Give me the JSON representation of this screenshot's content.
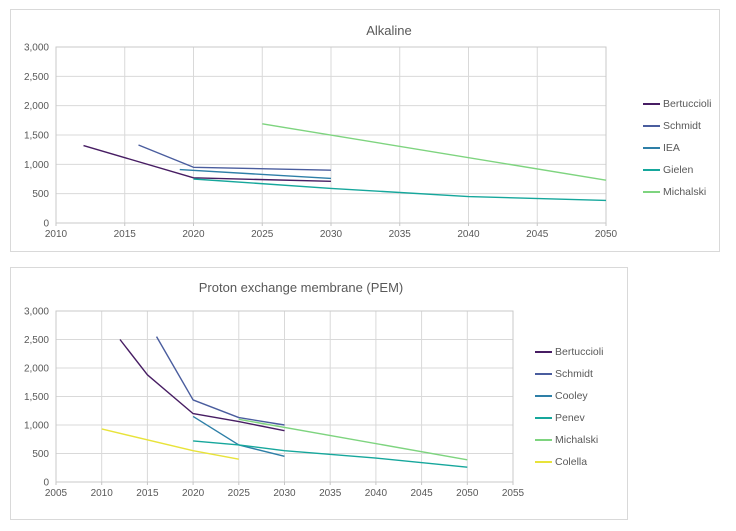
{
  "page": {
    "background": "#ffffff"
  },
  "colors": {
    "grid": "#d9d9d9",
    "plot_border": "#c9c9c9",
    "tick_mark": "#c6c6c6",
    "axis_text": "#595959",
    "title_text": "#595959"
  },
  "chart_data": [
    {
      "type": "line",
      "title": "Alkaline",
      "xlim": [
        2010,
        2050
      ],
      "ylim": [
        0,
        3000
      ],
      "grid": true,
      "legend_position": "right",
      "x_ticks": [
        2010,
        2015,
        2020,
        2025,
        2030,
        2035,
        2040,
        2045,
        2050
      ],
      "x_tick_labels": [
        "2010",
        "2015",
        "2020",
        "2025",
        "2030",
        "2035",
        "2040",
        "2045",
        "2050"
      ],
      "y_ticks": [
        0,
        500,
        1000,
        1500,
        2000,
        2500,
        3000
      ],
      "y_tick_labels": [
        "0",
        "500",
        "1,000",
        "1,500",
        "2,000",
        "2,500",
        "3,000"
      ],
      "series": [
        {
          "name": "Bertuccioli",
          "color": "#471d63",
          "points": [
            [
              2012,
              1320
            ],
            [
              2020,
              770
            ],
            [
              2030,
              710
            ]
          ]
        },
        {
          "name": "Schmidt",
          "color": "#4a5d9e",
          "points": [
            [
              2016,
              1330
            ],
            [
              2020,
              950
            ],
            [
              2030,
              900
            ]
          ]
        },
        {
          "name": "IEA",
          "color": "#2e7fa7",
          "points": [
            [
              2019,
              910
            ],
            [
              2030,
              760
            ]
          ]
        },
        {
          "name": "Gielen",
          "color": "#16a79c",
          "points": [
            [
              2020,
              750
            ],
            [
              2030,
              590
            ],
            [
              2040,
              450
            ],
            [
              2050,
              385
            ]
          ]
        },
        {
          "name": "Michalski",
          "color": "#7ed47f",
          "points": [
            [
              2025,
              1690
            ],
            [
              2050,
              730
            ]
          ]
        }
      ]
    },
    {
      "type": "line",
      "title": "Proton exchange membrane (PEM)",
      "xlim": [
        2005,
        2055
      ],
      "ylim": [
        0,
        3000
      ],
      "grid": true,
      "legend_position": "right",
      "x_ticks": [
        2005,
        2010,
        2015,
        2020,
        2025,
        2030,
        2035,
        2040,
        2045,
        2050,
        2055
      ],
      "x_tick_labels": [
        "2005",
        "2010",
        "2015",
        "2020",
        "2025",
        "2030",
        "2035",
        "2040",
        "2045",
        "2050",
        "2055"
      ],
      "y_ticks": [
        0,
        500,
        1000,
        1500,
        2000,
        2500,
        3000
      ],
      "y_tick_labels": [
        "0",
        "500",
        "1,000",
        "1,500",
        "2,000",
        "2,500",
        "3,000"
      ],
      "series": [
        {
          "name": "Bertuccioli",
          "color": "#471d63",
          "points": [
            [
              2012,
              2500
            ],
            [
              2015,
              1880
            ],
            [
              2020,
              1200
            ],
            [
              2025,
              1060
            ],
            [
              2030,
              900
            ]
          ]
        },
        {
          "name": "Schmidt",
          "color": "#4a5d9e",
          "points": [
            [
              2016,
              2550
            ],
            [
              2020,
              1440
            ],
            [
              2025,
              1130
            ],
            [
              2030,
              1000
            ]
          ]
        },
        {
          "name": "Cooley",
          "color": "#2e7fa7",
          "points": [
            [
              2020,
              1150
            ],
            [
              2025,
              650
            ],
            [
              2030,
              450
            ]
          ]
        },
        {
          "name": "Penev",
          "color": "#16a79c",
          "points": [
            [
              2020,
              720
            ],
            [
              2025,
              650
            ],
            [
              2030,
              550
            ],
            [
              2040,
              420
            ],
            [
              2050,
              260
            ]
          ]
        },
        {
          "name": "Michalski",
          "color": "#7ed47f",
          "points": [
            [
              2025,
              1100
            ],
            [
              2050,
              390
            ]
          ]
        },
        {
          "name": "Colella",
          "color": "#e8e33a",
          "points": [
            [
              2010,
              930
            ],
            [
              2020,
              550
            ],
            [
              2025,
              400
            ]
          ]
        }
      ]
    }
  ]
}
